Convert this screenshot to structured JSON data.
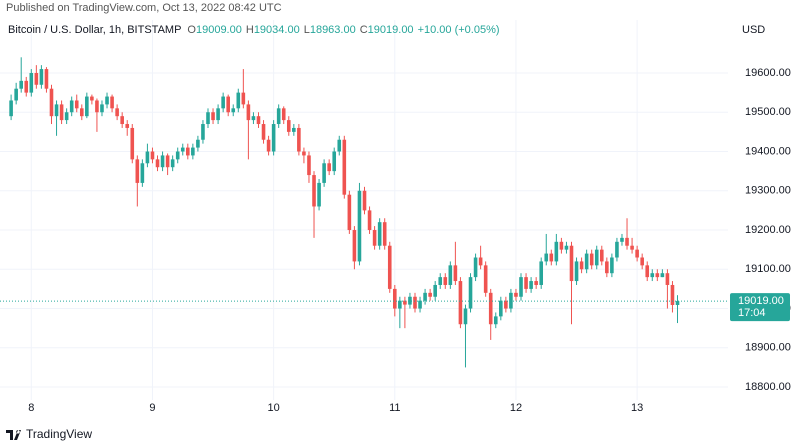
{
  "chart_data": {
    "type": "candlestick",
    "published": "Published on TradingView.com, Oct 13, 2022 08:42 UTC",
    "symbol": "Bitcoin / U.S. Dollar, 1h, BITSTAMP",
    "ohlc_legend": [
      {
        "key": "O",
        "text": "19009.00"
      },
      {
        "key": "H",
        "text": "19034.00"
      },
      {
        "key": "L",
        "text": "18963.00"
      },
      {
        "key": "C",
        "text": "19019.00"
      }
    ],
    "change": "+10.00 (+0.05%)",
    "currency": "USD",
    "countdown": "17:04",
    "footer": "TradingView",
    "up_color": "#26a69a",
    "down_color": "#ef5350",
    "grid": true,
    "open": [
      19490,
      19530,
      19560,
      19580,
      19550,
      19600,
      19570,
      19610,
      19560,
      19490,
      19520,
      19480,
      19500,
      19530,
      19510,
      19490,
      19540,
      19530,
      19500,
      19520,
      19540,
      19510,
      19490,
      19470,
      19460,
      19380,
      19320,
      19370,
      19400,
      19380,
      19360,
      19390,
      19360,
      19380,
      19400,
      19410,
      19390,
      19410,
      19430,
      19470,
      19500,
      19480,
      19510,
      19540,
      19500,
      19510,
      19550,
      19520,
      19480,
      19490,
      19470,
      19430,
      19400,
      19470,
      19510,
      19480,
      19450,
      19460,
      19400,
      19390,
      19340,
      19260,
      19320,
      19370,
      19350,
      19400,
      19430,
      19290,
      19200,
      19120,
      19300,
      19250,
      19200,
      19160,
      19220,
      19160,
      19050,
      19000,
      19020,
      19010,
      19030,
      19000,
      19020,
      19040,
      19030,
      19060,
      19080,
      19060,
      19110,
      19070,
      18960,
      19000,
      19080,
      19130,
      19110,
      19040,
      18960,
      18980,
      19020,
      19000,
      19040,
      19030,
      19080,
      19050,
      19070,
      19060,
      19120,
      19140,
      19120,
      19170,
      19150,
      19160,
      19070,
      19120,
      19100,
      19140,
      19110,
      19150,
      19120,
      19090,
      19130,
      19170,
      19180,
      19160,
      19150,
      19130,
      19110,
      19080,
      19090,
      19080,
      19090,
      19060,
      19009
    ],
    "high": [
      19545,
      19575,
      19640,
      19590,
      19610,
      19620,
      19620,
      19615,
      19570,
      19530,
      19530,
      19510,
      19540,
      19545,
      19520,
      19550,
      19545,
      19535,
      19530,
      19550,
      19545,
      19520,
      19500,
      19480,
      19470,
      19390,
      19380,
      19420,
      19410,
      19390,
      19400,
      19395,
      19390,
      19410,
      19420,
      19420,
      19420,
      19440,
      19480,
      19510,
      19510,
      19520,
      19550,
      19545,
      19520,
      19560,
      19610,
      19530,
      19500,
      19500,
      19480,
      19440,
      19480,
      19520,
      19515,
      19490,
      19470,
      19470,
      19410,
      19400,
      19350,
      19330,
      19380,
      19380,
      19410,
      19440,
      19440,
      19300,
      19210,
      19320,
      19310,
      19260,
      19210,
      19230,
      19230,
      19170,
      19060,
      19030,
      19030,
      19040,
      19040,
      19030,
      19050,
      19050,
      19070,
      19090,
      19090,
      19120,
      19170,
      19080,
      19010,
      19090,
      19140,
      19160,
      19120,
      19050,
      18990,
      19030,
      19030,
      19050,
      19050,
      19090,
      19090,
      19080,
      19080,
      19130,
      19190,
      19150,
      19190,
      19180,
      19170,
      19170,
      19130,
      19130,
      19150,
      19150,
      19160,
      19160,
      19130,
      19140,
      19180,
      19190,
      19230,
      19180,
      19160,
      19140,
      19120,
      19100,
      19100,
      19100,
      19100,
      19070,
      19034
    ],
    "low": [
      19480,
      19520,
      19550,
      19540,
      19540,
      19560,
      19560,
      19550,
      19470,
      19440,
      19470,
      19470,
      19490,
      19500,
      19480,
      19485,
      19520,
      19450,
      19490,
      19510,
      19500,
      19480,
      19460,
      19440,
      19370,
      19260,
      19310,
      19360,
      19370,
      19350,
      19350,
      19340,
      19350,
      19370,
      19390,
      19380,
      19380,
      19400,
      19420,
      19460,
      19470,
      19470,
      19500,
      19490,
      19490,
      19500,
      19510,
      19380,
      19470,
      19460,
      19420,
      19390,
      19390,
      19460,
      19470,
      19440,
      19440,
      19390,
      19370,
      19320,
      19180,
      19250,
      19310,
      19340,
      19340,
      19390,
      19280,
      19190,
      19100,
      19110,
      19240,
      19190,
      19150,
      19150,
      19150,
      19040,
      18980,
      18950,
      18950,
      19000,
      18990,
      18990,
      19010,
      19020,
      19020,
      19050,
      19050,
      19050,
      19060,
      18950,
      18850,
      18990,
      19070,
      19100,
      19030,
      18920,
      18950,
      18970,
      18990,
      18990,
      19020,
      19020,
      19040,
      19040,
      19050,
      19050,
      19110,
      19110,
      19110,
      19140,
      19140,
      18960,
      19060,
      19090,
      19090,
      19100,
      19100,
      19110,
      19080,
      19080,
      19120,
      19160,
      19150,
      19140,
      19120,
      19100,
      19070,
      19070,
      19070,
      19080,
      19000,
      18990,
      18963
    ],
    "close": [
      19530,
      19560,
      19580,
      19550,
      19600,
      19570,
      19610,
      19560,
      19490,
      19520,
      19480,
      19500,
      19530,
      19510,
      19490,
      19540,
      19530,
      19500,
      19520,
      19540,
      19510,
      19490,
      19470,
      19460,
      19380,
      19320,
      19370,
      19400,
      19380,
      19360,
      19390,
      19360,
      19380,
      19400,
      19410,
      19390,
      19410,
      19430,
      19470,
      19500,
      19480,
      19510,
      19540,
      19500,
      19510,
      19550,
      19520,
      19480,
      19490,
      19470,
      19430,
      19400,
      19470,
      19510,
      19480,
      19450,
      19460,
      19400,
      19390,
      19340,
      19260,
      19320,
      19370,
      19350,
      19400,
      19430,
      19290,
      19200,
      19120,
      19300,
      19250,
      19200,
      19160,
      19220,
      19160,
      19050,
      19000,
      19020,
      19010,
      19030,
      19000,
      19020,
      19040,
      19030,
      19060,
      19080,
      19060,
      19110,
      19070,
      18960,
      19000,
      19080,
      19130,
      19110,
      19040,
      18960,
      18980,
      19020,
      19000,
      19040,
      19030,
      19080,
      19050,
      19070,
      19060,
      19120,
      19140,
      19120,
      19170,
      19150,
      19160,
      19070,
      19120,
      19100,
      19140,
      19110,
      19150,
      19120,
      19090,
      19130,
      19170,
      19180,
      19160,
      19150,
      19130,
      19110,
      19080,
      19090,
      19080,
      19090,
      19060,
      19009,
      19019
    ],
    "last_price": {
      "value": 19019,
      "label": "19019.00"
    },
    "xlim": [
      -2.2,
      142
    ],
    "xticks": [
      {
        "value": 4,
        "label": "8"
      },
      {
        "value": 28,
        "label": "9"
      },
      {
        "value": 52,
        "label": "10"
      },
      {
        "value": 76,
        "label": "11"
      },
      {
        "value": 100,
        "label": "12"
      },
      {
        "value": 124,
        "label": "13"
      }
    ],
    "ylim": [
      18767,
      19735
    ],
    "yticks": [
      {
        "value": 18800,
        "label": "18800.00"
      },
      {
        "value": 18900,
        "label": "18900.00"
      },
      {
        "value": 19000,
        "label": "19000.00"
      },
      {
        "value": 19100,
        "label": "19100.00"
      },
      {
        "value": 19200,
        "label": "19200.00"
      },
      {
        "value": 19300,
        "label": "19300.00"
      },
      {
        "value": 19400,
        "label": "19400.00"
      },
      {
        "value": 19500,
        "label": "19500.00"
      },
      {
        "value": 19600,
        "label": "19600.00"
      }
    ]
  }
}
